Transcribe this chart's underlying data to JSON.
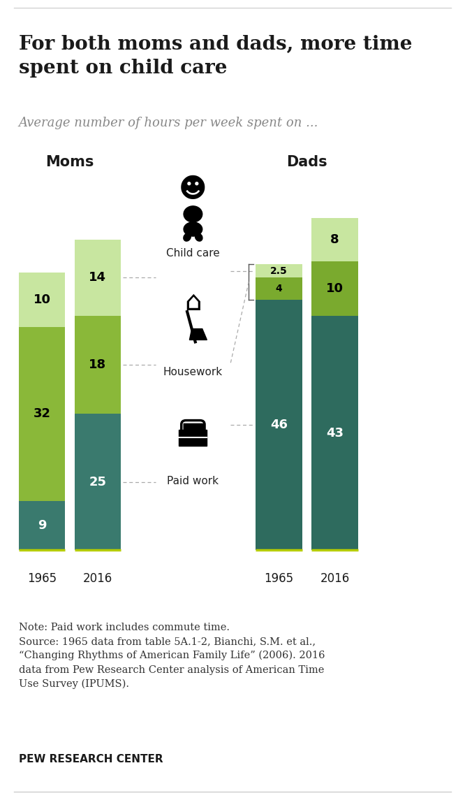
{
  "title": "For both moms and dads, more time\nspent on child care",
  "subtitle": "Average number of hours per week spent on ...",
  "moms_label": "Moms",
  "dads_label": "Dads",
  "years": [
    "1965",
    "2016"
  ],
  "moms_paid_work": [
    9,
    25
  ],
  "moms_housework": [
    32,
    18
  ],
  "moms_childcare": [
    10,
    14
  ],
  "dads_paid_work": [
    46,
    43
  ],
  "dads_housework": [
    4,
    10
  ],
  "dads_childcare": [
    2.5,
    8
  ],
  "moms_paid_work_labels": [
    "9",
    "25"
  ],
  "moms_housework_labels": [
    "32",
    "18"
  ],
  "moms_childcare_labels": [
    "10",
    "14"
  ],
  "dads_paid_work_labels": [
    "46",
    "43"
  ],
  "dads_housework_labels": [
    "4",
    "10"
  ],
  "dads_childcare_labels": [
    "2.5",
    "8"
  ],
  "color_paid_work": "#3a7a6e",
  "color_housework_moms": "#8ab839",
  "color_childcare_moms": "#c8e6a0",
  "color_paid_work_dads": "#2e6b5e",
  "color_housework_dads": "#7aaa2e",
  "color_childcare_dads": "#c8e6a0",
  "bg_color": "#ffffff",
  "note_text": "Note: Paid work includes commute time.\nSource: 1965 data from table 5A.1-2, Bianchi, S.M. et al.,\n“Changing Rhythms of American Family Life” (2006). 2016\ndata from Pew Research Center analysis of American Time\nUse Survey (IPUMS).",
  "source_label": "PEW RESEARCH CENTER",
  "child_care_label": "Child care",
  "housework_label": "Housework",
  "paid_work_label": "Paid work"
}
